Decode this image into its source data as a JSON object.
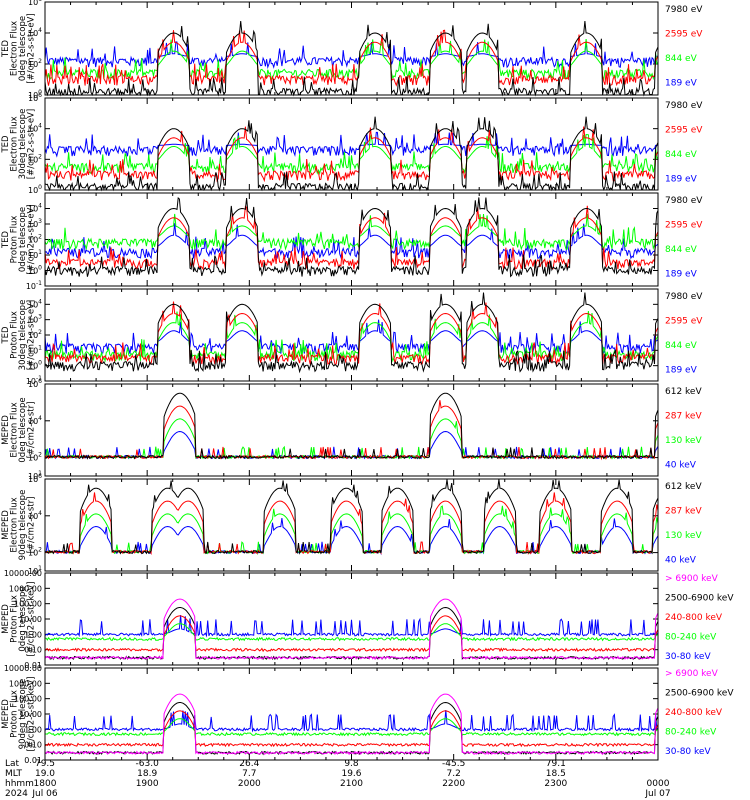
{
  "colors": {
    "black": "#000000",
    "red": "#ff0000",
    "green": "#00ff00",
    "blue": "#0000ff",
    "magenta": "#ff00ff"
  },
  "chart_data": [
    {
      "type": "line",
      "ylabel": [
        "TED",
        "Electron Flux",
        "0deg telescope",
        "[#/cm2-s-str-eV]"
      ],
      "ylim": [
        1,
        1000000
      ],
      "ytick_labels": [
        "10^0",
        "10^2",
        "10^4",
        "10^6"
      ],
      "legend": [
        {
          "name": "7980 eV",
          "color": "black"
        },
        {
          "name": "2595 eV",
          "color": "red"
        },
        {
          "name": "844 eV",
          "color": "green"
        },
        {
          "name": "189 eV",
          "color": "blue"
        }
      ],
      "peaks_x": [
        1.26,
        1.93,
        3.23,
        3.92,
        4.28,
        5.3,
        6.13,
        7.32,
        7.97
      ]
    },
    {
      "type": "line",
      "ylabel": [
        "TED",
        "Electron Flux",
        "30deg telescope",
        "[#/cm2-s-str-eV]"
      ],
      "ylim": [
        1,
        1000000
      ],
      "ytick_labels": [
        "10^0",
        "10^2",
        "10^4",
        "10^6"
      ],
      "legend": [
        {
          "name": "7980 eV",
          "color": "black"
        },
        {
          "name": "2595 eV",
          "color": "red"
        },
        {
          "name": "844 eV",
          "color": "green"
        },
        {
          "name": "189 eV",
          "color": "blue"
        }
      ],
      "peaks_x": [
        1.26,
        1.93,
        3.23,
        3.92,
        4.28,
        5.3,
        6.13,
        7.32,
        7.97
      ]
    },
    {
      "type": "line",
      "ylabel": [
        "TED",
        "Proton Flux",
        "0deg telescope",
        "[#/cm2-s-str-eV]"
      ],
      "ylim": [
        0.1,
        100000
      ],
      "ytick_labels": [
        "10^-1",
        "10^0",
        "10^1",
        "10^2",
        "10^3",
        "10^4"
      ],
      "legend": [
        {
          "name": "7980 eV",
          "color": "black"
        },
        {
          "name": "2595 eV",
          "color": "red"
        },
        {
          "name": "844 eV",
          "color": "green"
        },
        {
          "name": "189 eV",
          "color": "blue"
        }
      ],
      "peaks_x": [
        1.26,
        1.93,
        3.23,
        3.92,
        4.28,
        5.3,
        6.13,
        7.32,
        7.97
      ]
    },
    {
      "type": "line",
      "ylabel": [
        "TED",
        "Proton Flux",
        "30deg telescope",
        "[#/cm2-s-str-eV]"
      ],
      "ylim": [
        0.1,
        100000
      ],
      "ytick_labels": [
        "10^-1",
        "10^0",
        "10^1",
        "10^2",
        "10^3",
        "10^4"
      ],
      "legend": [
        {
          "name": "7980 eV",
          "color": "black"
        },
        {
          "name": "2595 eV",
          "color": "red"
        },
        {
          "name": "844 eV",
          "color": "green"
        },
        {
          "name": "189 eV",
          "color": "blue"
        }
      ],
      "peaks_x": [
        1.26,
        1.93,
        3.23,
        3.92,
        4.28,
        5.3,
        6.13,
        7.32,
        7.97
      ]
    },
    {
      "type": "line",
      "ylabel": [
        "MEPED",
        "Electron Flux",
        "0deg telescope",
        "[#/cm2-s-str]"
      ],
      "ylim": [
        10,
        1000000
      ],
      "ytick_labels": [
        "10^1",
        "10^2",
        "10^4",
        "10^6"
      ],
      "legend": [
        {
          "name": "612 keV",
          "color": "black"
        },
        {
          "name": "287 keV",
          "color": "red"
        },
        {
          "name": "130 keV",
          "color": "green"
        },
        {
          "name": "40 keV",
          "color": "blue"
        }
      ],
      "peaks_x": [
        1.32,
        3.92,
        6.13
      ]
    },
    {
      "type": "line",
      "ylabel": [
        "MEPED",
        "Electron Flux",
        "90deg telescope",
        "[#/cm2-s-str]"
      ],
      "ylim": [
        10,
        1000000
      ],
      "ytick_labels": [
        "10^1",
        "10^2",
        "10^4",
        "10^6"
      ],
      "legend": [
        {
          "name": "612 keV",
          "color": "black"
        },
        {
          "name": "287 keV",
          "color": "red"
        },
        {
          "name": "130 keV",
          "color": "green"
        },
        {
          "name": "40 keV",
          "color": "blue"
        }
      ],
      "peaks_x": [
        0.5,
        1.2,
        1.4,
        2.3,
        2.95,
        3.45,
        3.92,
        4.45,
        5.0,
        5.6,
        6.1,
        6.7,
        7.2
      ]
    },
    {
      "type": "line",
      "ylabel": [
        "MEPED",
        "Proton Flux",
        "0deg telescope",
        "[#/cm2-s-str-keV]"
      ],
      "ylim": [
        0.01,
        10000
      ],
      "ytick_labels": [
        "0.01",
        "0.10",
        "1.00",
        "10.00",
        "100.00",
        "1000.00",
        "10000.00"
      ],
      "legend": [
        {
          "name": "> 6900 keV",
          "color": "magenta"
        },
        {
          "name": "2500-6900 keV",
          "color": "black"
        },
        {
          "name": "240-800 keV",
          "color": "red"
        },
        {
          "name": "80-240 keV",
          "color": "green"
        },
        {
          "name": "30-80 keV",
          "color": "blue"
        }
      ],
      "peaks_x": [
        1.32,
        3.92,
        6.13
      ]
    },
    {
      "type": "line",
      "ylabel": [
        "MEPED",
        "Proton Flux",
        "90deg telescope",
        "[#/cm2-s-str-keV]"
      ],
      "ylim": [
        0.01,
        10000
      ],
      "ytick_labels": [
        "0.01",
        "0.10",
        "1.00",
        "10.00",
        "100.00",
        "1000.00",
        "10000.00"
      ],
      "legend": [
        {
          "name": "> 6900 keV",
          "color": "magenta"
        },
        {
          "name": "2500-6900 keV",
          "color": "black"
        },
        {
          "name": "240-800 keV",
          "color": "red"
        },
        {
          "name": "80-240 keV",
          "color": "green"
        },
        {
          "name": "30-80 keV",
          "color": "blue"
        }
      ],
      "peaks_x": [
        1.32,
        3.92,
        6.13
      ]
    }
  ],
  "x_axis": {
    "row_labels": [
      "Lat",
      "MLT",
      "hhmm",
      "2024"
    ],
    "ticks": [
      {
        "x": 0,
        "lat": "79.5",
        "mlt": "19.0",
        "hhmm": "1800",
        "date": "Jul 06"
      },
      {
        "x": 1,
        "lat": "-63.0",
        "mlt": "18.9",
        "hhmm": "1900",
        "date": ""
      },
      {
        "x": 2,
        "lat": "26.4",
        "mlt": "7.7",
        "hhmm": "2000",
        "date": ""
      },
      {
        "x": 3,
        "lat": "9.8",
        "mlt": "19.6",
        "hhmm": "2100",
        "date": ""
      },
      {
        "x": 4,
        "lat": "-45.5",
        "mlt": "7.2",
        "hhmm": "2200",
        "date": ""
      },
      {
        "x": 5,
        "lat": "79.1",
        "mlt": "18.5",
        "hhmm": "2300",
        "date": ""
      },
      {
        "x": 6,
        "lat": "",
        "mlt": "",
        "hhmm": "0000",
        "date": "Jul 07"
      }
    ],
    "xlim": [
      0,
      6
    ]
  }
}
